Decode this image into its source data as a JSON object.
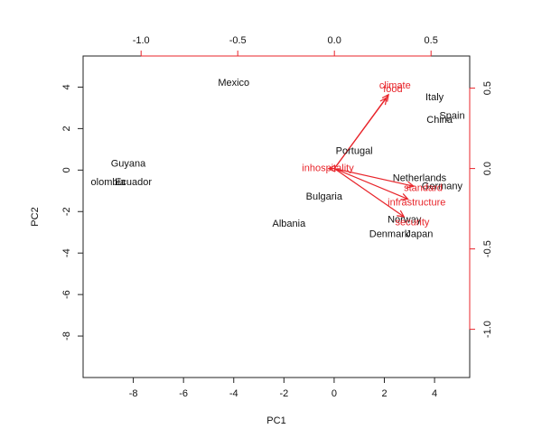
{
  "chart_data": {
    "type": "scatter",
    "subtype": "biplot",
    "title": "",
    "xlabel": "PC1",
    "ylabel": "PC2",
    "xlim": [
      -10,
      5.4
    ],
    "ylim": [
      -10,
      5.5
    ],
    "x_ticks": [
      -8,
      -6,
      -4,
      -2,
      0,
      2,
      4
    ],
    "y_ticks": [
      -8,
      -6,
      -4,
      -2,
      0,
      2,
      4
    ],
    "secondary_xlim": [
      -1.3,
      0.7
    ],
    "secondary_x_ticks": [
      -1.0,
      -0.5,
      0.0,
      0.5
    ],
    "secondary_ylim": [
      -1.3,
      0.7
    ],
    "secondary_y_ticks": [
      -1.0,
      -0.5,
      0.0,
      0.5
    ],
    "grid": false,
    "observations": [
      {
        "label": "Mexico",
        "x": -4.0,
        "y": 4.2
      },
      {
        "label": "Guyana",
        "x": -8.2,
        "y": 0.3
      },
      {
        "label": "Colombia",
        "x": -9.0,
        "y": -0.6
      },
      {
        "label": "Ecuador",
        "x": -8.0,
        "y": -0.6
      },
      {
        "label": "Portugal",
        "x": 0.8,
        "y": 0.9
      },
      {
        "label": "Bulgaria",
        "x": -0.4,
        "y": -1.3
      },
      {
        "label": "Albania",
        "x": -1.8,
        "y": -2.6
      },
      {
        "label": "Italy",
        "x": 4.0,
        "y": 3.5
      },
      {
        "label": "Spain",
        "x": 4.7,
        "y": 2.6
      },
      {
        "label": "China",
        "x": 4.2,
        "y": 2.4
      },
      {
        "label": "Netherlands",
        "x": 3.4,
        "y": -0.4
      },
      {
        "label": "Germany",
        "x": 4.3,
        "y": -0.8
      },
      {
        "label": "Norway",
        "x": 2.8,
        "y": -2.4
      },
      {
        "label": "Denmark",
        "x": 2.2,
        "y": -3.1
      },
      {
        "label": "Japan",
        "x": 3.4,
        "y": -3.1
      }
    ],
    "loadings": [
      {
        "label": "climate",
        "x": 0.28,
        "y": 0.46
      },
      {
        "label": "food",
        "x": 0.27,
        "y": 0.44
      },
      {
        "label": "inhospitality",
        "x": -0.03,
        "y": 0.0
      },
      {
        "label": "standard",
        "x": 0.41,
        "y": -0.11
      },
      {
        "label": "infrastructure",
        "x": 0.38,
        "y": -0.19
      },
      {
        "label": "security",
        "x": 0.36,
        "y": -0.3
      }
    ],
    "colors": {
      "observations": "#111111",
      "loadings": "#e8242a",
      "axes": "#111111"
    }
  },
  "labels": {
    "observation_labels": [
      "Mexico",
      "Guyana",
      "olombia",
      "Ecuador",
      "Portugal",
      "Bulgaria",
      "Albania",
      "Italy",
      "Spain",
      "China",
      "Netherlands",
      "Germany",
      "Norway",
      "Denmark",
      "Japan"
    ],
    "loading_labels": [
      "climate",
      "food",
      "inhospitality",
      "standard",
      "infrastructure",
      "security"
    ]
  }
}
